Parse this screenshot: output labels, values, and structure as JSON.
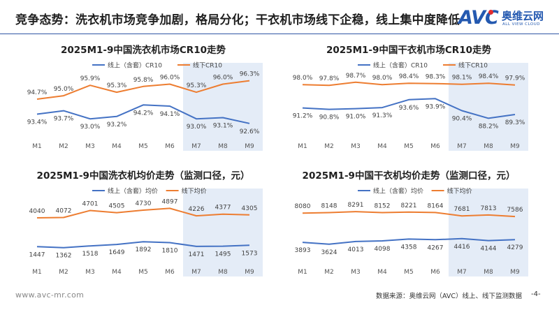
{
  "header": {
    "title": "竞争态势：洗衣机市场竞争加剧，格局分化；干衣机市场线下企稳，线上集中度降低"
  },
  "logo": {
    "mark": "AVC",
    "name_cn": "奥维云网",
    "name_en": "ALL VIEW CLOUD"
  },
  "footer": {
    "url": "www.avc-mr.com",
    "source": "数据来源：奥维云网（AVC）线上、线下监测数据",
    "page": "-4-"
  },
  "colors": {
    "online": "#4472c4",
    "offline": "#ed7d31",
    "highlight": "#dbe6f4",
    "title_rule": "#2f55a4"
  },
  "chart_data": [
    {
      "id": "washer-cr10",
      "type": "line",
      "title": "2025M1-9中国洗衣机市场CR10走势",
      "categories": [
        "M1",
        "M2",
        "M3",
        "M4",
        "M5",
        "M6",
        "M7",
        "M8",
        "M9"
      ],
      "series": [
        {
          "name": "线上（含套）CR10",
          "color": "#4472c4",
          "values": [
            93.4,
            93.7,
            93.0,
            93.2,
            94.2,
            94.1,
            93.0,
            93.1,
            92.6
          ],
          "labels": [
            "93.4%",
            "93.7%",
            "93.0%",
            "93.2%",
            "94.2%",
            "94.1%",
            "93.0%",
            "93.1%",
            "92.6%"
          ],
          "label_position": "below"
        },
        {
          "name": "线下CR10",
          "color": "#ed7d31",
          "values": [
            94.7,
            95.0,
            95.9,
            95.3,
            95.8,
            96.0,
            95.3,
            96.0,
            96.3
          ],
          "labels": [
            "94.7%",
            "95.0%",
            "95.9%",
            "95.3%",
            "95.8%",
            "96.0%",
            "95.3%",
            "96.0%",
            "96.3%"
          ],
          "label_position": "above"
        }
      ],
      "ylim": [
        91.8,
        97.0
      ],
      "highlight_range": [
        "M7",
        "M9"
      ],
      "legend_position": "top",
      "grid": false
    },
    {
      "id": "dryer-cr10",
      "type": "line",
      "title": "2025M1-9中国干衣机市场CR10走势",
      "categories": [
        "M1",
        "M2",
        "M3",
        "M4",
        "M5",
        "M6",
        "M7",
        "M8",
        "M9"
      ],
      "series": [
        {
          "name": "线上（含套）CR10",
          "color": "#4472c4",
          "values": [
            91.2,
            90.8,
            91.0,
            91.3,
            93.6,
            93.9,
            90.4,
            88.2,
            89.3
          ],
          "labels": [
            "91.2%",
            "90.8%",
            "91.0%",
            "91.3%",
            "93.6%",
            "93.9%",
            "90.4%",
            "88.2%",
            "89.3%"
          ],
          "label_position": "below"
        },
        {
          "name": "线下CR10",
          "color": "#ed7d31",
          "values": [
            98.0,
            97.8,
            98.7,
            98.0,
            98.4,
            98.3,
            98.1,
            98.4,
            97.9
          ],
          "labels": [
            "98.0%",
            "97.8%",
            "98.7%",
            "98.0%",
            "98.4%",
            "98.3%",
            "98.1%",
            "98.4%",
            "97.9%"
          ],
          "label_position": "above"
        }
      ],
      "ylim": [
        84.0,
        101.5
      ],
      "highlight_range": [
        "M7",
        "M9"
      ],
      "legend_position": "top",
      "grid": false
    },
    {
      "id": "washer-price",
      "type": "line",
      "title": "2025M1-9中国洗衣机均价走势（监测口径，元）",
      "categories": [
        "M1",
        "M2",
        "M3",
        "M4",
        "M5",
        "M6",
        "M7",
        "M8",
        "M9"
      ],
      "series": [
        {
          "name": "线上（含套）均价",
          "color": "#4472c4",
          "values": [
            1447,
            1362,
            1518,
            1649,
            1892,
            1810,
            1471,
            1495,
            1573
          ],
          "labels": [
            "1447",
            "1362",
            "1518",
            "1649",
            "1892",
            "1810",
            "1471",
            "1495",
            "1573"
          ],
          "label_position": "below"
        },
        {
          "name": "线下均价",
          "color": "#ed7d31",
          "values": [
            4040,
            4072,
            4701,
            4505,
            4730,
            4897,
            4226,
            4377,
            4305
          ],
          "labels": [
            "4040",
            "4072",
            "4701",
            "4505",
            "4730",
            "4897",
            "4226",
            "4377",
            "4305"
          ],
          "label_position": "above"
        }
      ],
      "ylim": [
        400,
        5800
      ],
      "highlight_range": [
        "M7",
        "M9"
      ],
      "legend_position": "top",
      "grid": false
    },
    {
      "id": "dryer-price",
      "type": "line",
      "title": "2025M1-9中国干衣机均价走势（监测口径，元）",
      "categories": [
        "M1",
        "M2",
        "M3",
        "M4",
        "M5",
        "M6",
        "M7",
        "M8",
        "M9"
      ],
      "series": [
        {
          "name": "线上（含套）均价",
          "color": "#4472c4",
          "values": [
            3893,
            3624,
            4013,
            4098,
            4358,
            4267,
            4416,
            4144,
            4279
          ],
          "labels": [
            "3893",
            "3624",
            "4013",
            "4098",
            "4358",
            "4267",
            "4416",
            "4144",
            "4279"
          ],
          "label_position": "below"
        },
        {
          "name": "线下均价",
          "color": "#ed7d31",
          "values": [
            8080,
            8148,
            8291,
            8152,
            8221,
            8164,
            7681,
            7813,
            7586
          ],
          "labels": [
            "8080",
            "8148",
            "8291",
            "8152",
            "8221",
            "8164",
            "7681",
            "7813",
            "7586"
          ],
          "label_position": "above"
        }
      ],
      "ylim": [
        1600,
        10200
      ],
      "highlight_range": [
        "M7",
        "M9"
      ],
      "legend_position": "top",
      "grid": false
    }
  ]
}
